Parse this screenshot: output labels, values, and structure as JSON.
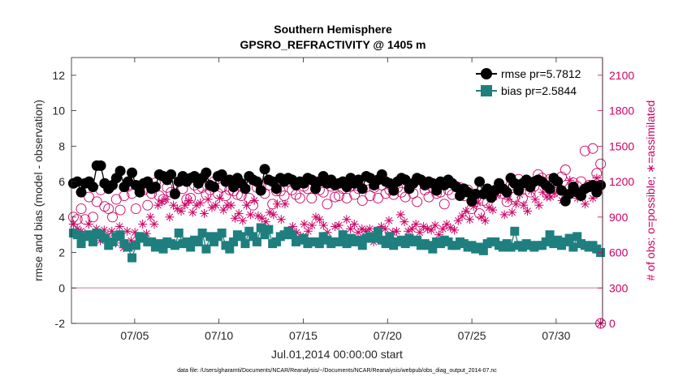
{
  "chart_data": {
    "type": "line",
    "title": "Southern Hemisphere",
    "subtitle": "GPSRO_REFRACTIVITY @ 1405 m",
    "xlabel": "Jul.01,2014 00:00:00 start",
    "ylabel_left": "rmse and bias (model - observation)",
    "ylabel_right": "# of obs: o=possible; ∗=assimilated",
    "footnote": "data file: /Users/gharamti/Documents/NCAR/Reanalysis/~/Documents/NCAR/Reanalysis/webpub/obs_diag_output_2014-07.nc",
    "x_range_days": [
      0.25,
      31.75
    ],
    "x_ticks": [
      {
        "day": 4,
        "label": "07/05"
      },
      {
        "day": 9,
        "label": "07/10"
      },
      {
        "day": 14,
        "label": "07/15"
      },
      {
        "day": 19,
        "label": "07/20"
      },
      {
        "day": 24,
        "label": "07/25"
      },
      {
        "day": 29,
        "label": "07/30"
      }
    ],
    "ylim_left": [
      -2,
      13
    ],
    "y_ticks_left": [
      "-2",
      "0",
      "2",
      "4",
      "6",
      "8",
      "10",
      "12"
    ],
    "ylim_right": [
      0,
      2250
    ],
    "y_ticks_right": [
      "0",
      "300",
      "600",
      "900",
      "1200",
      "1500",
      "1800",
      "2100"
    ],
    "zero_line": 0,
    "legend_position": "top-right",
    "grid": false,
    "colors": {
      "rmse": "#000000",
      "bias": "#1f7f7f",
      "obs": "#cc0066",
      "zero": "#cc99aa"
    },
    "series": [
      {
        "name": "rmse pr=5.7812",
        "axis": "left",
        "marker": "circle",
        "y": [
          5.9,
          6.0,
          5.4,
          5.9,
          6.0,
          5.7,
          6.9,
          6.9,
          5.9,
          5.6,
          5.8,
          6.2,
          6.6,
          5.7,
          6.0,
          6.5,
          5.8,
          5.4,
          5.9,
          6.0,
          5.6,
          5.7,
          6.4,
          6.3,
          6.1,
          6.4,
          5.3,
          6.0,
          6.3,
          6.0,
          6.2,
          6.3,
          5.9,
          6.2,
          6.5,
          5.8,
          5.7,
          6.3,
          6.4,
          6.0,
          6.1,
          5.7,
          6.2,
          5.9,
          5.6,
          6.3,
          6.1,
          6.0,
          5.5,
          6.7,
          6.1,
          6.0,
          5.6,
          6.2,
          6.0,
          6.2,
          6.1,
          5.8,
          6.0,
          5.9,
          6.2,
          6.1,
          5.6,
          6.0,
          6.3,
          5.9,
          6.1,
          5.8,
          5.9,
          6.0,
          5.7,
          6.2,
          5.9,
          6.1,
          5.6,
          6.3,
          6.2,
          5.8,
          6.1,
          6.4,
          6.0,
          5.9,
          5.5,
          6.0,
          6.2,
          6.1,
          5.6,
          5.9,
          6.2,
          6.1,
          5.8,
          6.0,
          5.9,
          5.5,
          6.0,
          5.8,
          6.1,
          5.9,
          5.7,
          5.2,
          5.6,
          5.4,
          4.9,
          5.3,
          6.0,
          5.3,
          5.6,
          5.1,
          5.5,
          5.9,
          5.6,
          5.4,
          6.2,
          5.9,
          5.5,
          5.9,
          6.1,
          5.7,
          6.0,
          6.1,
          6.0,
          5.8,
          5.6,
          6.2,
          6.0,
          5.5,
          4.9,
          5.3,
          5.7,
          5.4,
          5.2,
          5.6,
          5.7,
          5.8,
          5.4,
          5.8
        ]
      },
      {
        "name": "bias pr=2.5844",
        "axis": "left",
        "marker": "square",
        "y": [
          3.1,
          3.0,
          2.5,
          2.9,
          3.0,
          2.6,
          3.1,
          3.0,
          2.8,
          2.4,
          2.6,
          2.9,
          3.0,
          2.5,
          2.3,
          1.7,
          2.4,
          2.9,
          2.8,
          2.6,
          2.6,
          2.3,
          2.5,
          2.2,
          2.6,
          2.5,
          2.4,
          3.1,
          2.5,
          2.6,
          2.3,
          2.7,
          2.6,
          3.1,
          2.2,
          2.9,
          2.6,
          2.9,
          3.1,
          2.4,
          2.2,
          2.6,
          3.0,
          2.9,
          2.5,
          3.2,
          2.9,
          2.6,
          3.4,
          3.0,
          3.3,
          2.5,
          2.6,
          2.9,
          3.0,
          3.2,
          3.0,
          2.6,
          2.7,
          2.8,
          2.5,
          2.6,
          2.6,
          2.5,
          2.9,
          2.7,
          2.5,
          2.6,
          2.6,
          3.0,
          2.5,
          2.8,
          2.6,
          2.7,
          2.4,
          2.8,
          2.9,
          2.8,
          3.2,
          2.7,
          2.5,
          2.9,
          2.4,
          2.6,
          2.7,
          2.5,
          2.8,
          2.6,
          2.7,
          2.4,
          2.5,
          2.4,
          2.2,
          2.6,
          2.5,
          2.7,
          2.6,
          2.4,
          2.4,
          2.6,
          2.5,
          2.3,
          2.4,
          2.2,
          2.3,
          2.1,
          2.5,
          2.6,
          2.6,
          2.4,
          2.3,
          2.5,
          2.3,
          3.2,
          2.4,
          2.3,
          2.5,
          2.4,
          2.3,
          2.4,
          2.4,
          2.6,
          3.0,
          2.5,
          2.7,
          2.4,
          2.6,
          2.8,
          2.3,
          2.9,
          2.5,
          2.4,
          2.3,
          2.4,
          2.2,
          2.0
        ]
      },
      {
        "name": "possible",
        "axis": "right",
        "marker": "open-circle",
        "y": [
          900,
          880,
          970,
          880,
          1070,
          900,
          1030,
          1130,
          990,
          970,
          900,
          1050,
          960,
          1080,
          1160,
          1100,
          970,
          1140,
          1130,
          1000,
          1100,
          1190,
          1080,
          1050,
          1150,
          1110,
          1100,
          1200,
          1140,
          1050,
          1060,
          1170,
          1140,
          1150,
          1090,
          1130,
          1200,
          1100,
          1150,
          1080,
          1130,
          1120,
          1090,
          1080,
          1170,
          1060,
          1000,
          1150,
          1160,
          1100,
          1170,
          1010,
          1120,
          1120,
          1080,
          1200,
          1130,
          1090,
          1060,
          1160,
          1140,
          1060,
          1200,
          1130,
          1110,
          1010,
          1160,
          1070,
          1080,
          1140,
          1060,
          1160,
          1090,
          1140,
          1040,
          1210,
          1080,
          1150,
          1060,
          1170,
          1100,
          1130,
          1090,
          1150,
          1110,
          1070,
          1170,
          1100,
          1030,
          1210,
          1130,
          1070,
          1150,
          1100,
          1110,
          1010,
          1130,
          1090,
          1160,
          1150,
          1080,
          1130,
          970,
          1060,
          930,
          1040,
          1020,
          1110,
          1130,
          1160,
          1100,
          1030,
          1170,
          1070,
          1220,
          1060,
          1170,
          1110,
          1160,
          1260,
          1230,
          1170,
          1220,
          1110,
          1150,
          1240,
          1300,
          1140,
          1190,
          1160,
          1200,
          1460,
          1170,
          1480,
          1270,
          1350
        ]
      },
      {
        "name": "assimilated",
        "axis": "right",
        "marker": "asterisk",
        "y": [
          840,
          800,
          780,
          760,
          840,
          760,
          800,
          700,
          790,
          740,
          780,
          680,
          820,
          640,
          780,
          700,
          770,
          730,
          840,
          760,
          900,
          840,
          1000,
          1030,
          1050,
          900,
          1000,
          970,
          950,
          1000,
          1040,
          940,
          1000,
          1020,
          930,
          1050,
          980,
          1000,
          1060,
          960,
          1000,
          1000,
          890,
          930,
          870,
          1000,
          920,
          1040,
          910,
          890,
          860,
          940,
          920,
          1010,
          880,
          1010,
          780,
          820,
          770,
          740,
          840,
          780,
          830,
          900,
          880,
          830,
          770,
          700,
          820,
          830,
          760,
          880,
          800,
          840,
          770,
          800,
          780,
          800,
          690,
          780,
          820,
          800,
          870,
          770,
          780,
          920,
          860,
          780,
          800,
          840,
          770,
          820,
          800,
          790,
          830,
          750,
          800,
          840,
          810,
          790,
          870,
          910,
          950,
          880,
          990,
          1020,
          900,
          870,
          980,
          960,
          1080,
          1110,
          920,
          1050,
          940,
          1010,
          1090,
          1000,
          950,
          1120,
          1050,
          1000,
          1110,
          1070,
          1070,
          1100,
          1150,
          1040,
          1070,
          1210,
          1120,
          1060,
          1100,
          1010,
          1170,
          1060,
          1230,
          0
        ]
      }
    ]
  }
}
